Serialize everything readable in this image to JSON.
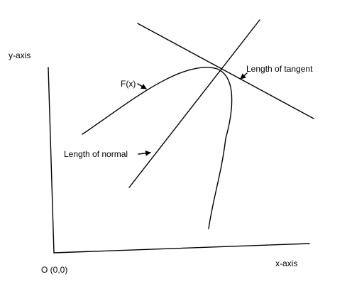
{
  "labels": {
    "y_axis": "y-axis",
    "x_axis": "x-axis",
    "origin": "O (0,0)",
    "function": "F(x)",
    "tangent": "Length of tangent",
    "normal": "Length of normal"
  },
  "colors": {
    "stroke": "#000000",
    "background": "#ffffff"
  }
}
